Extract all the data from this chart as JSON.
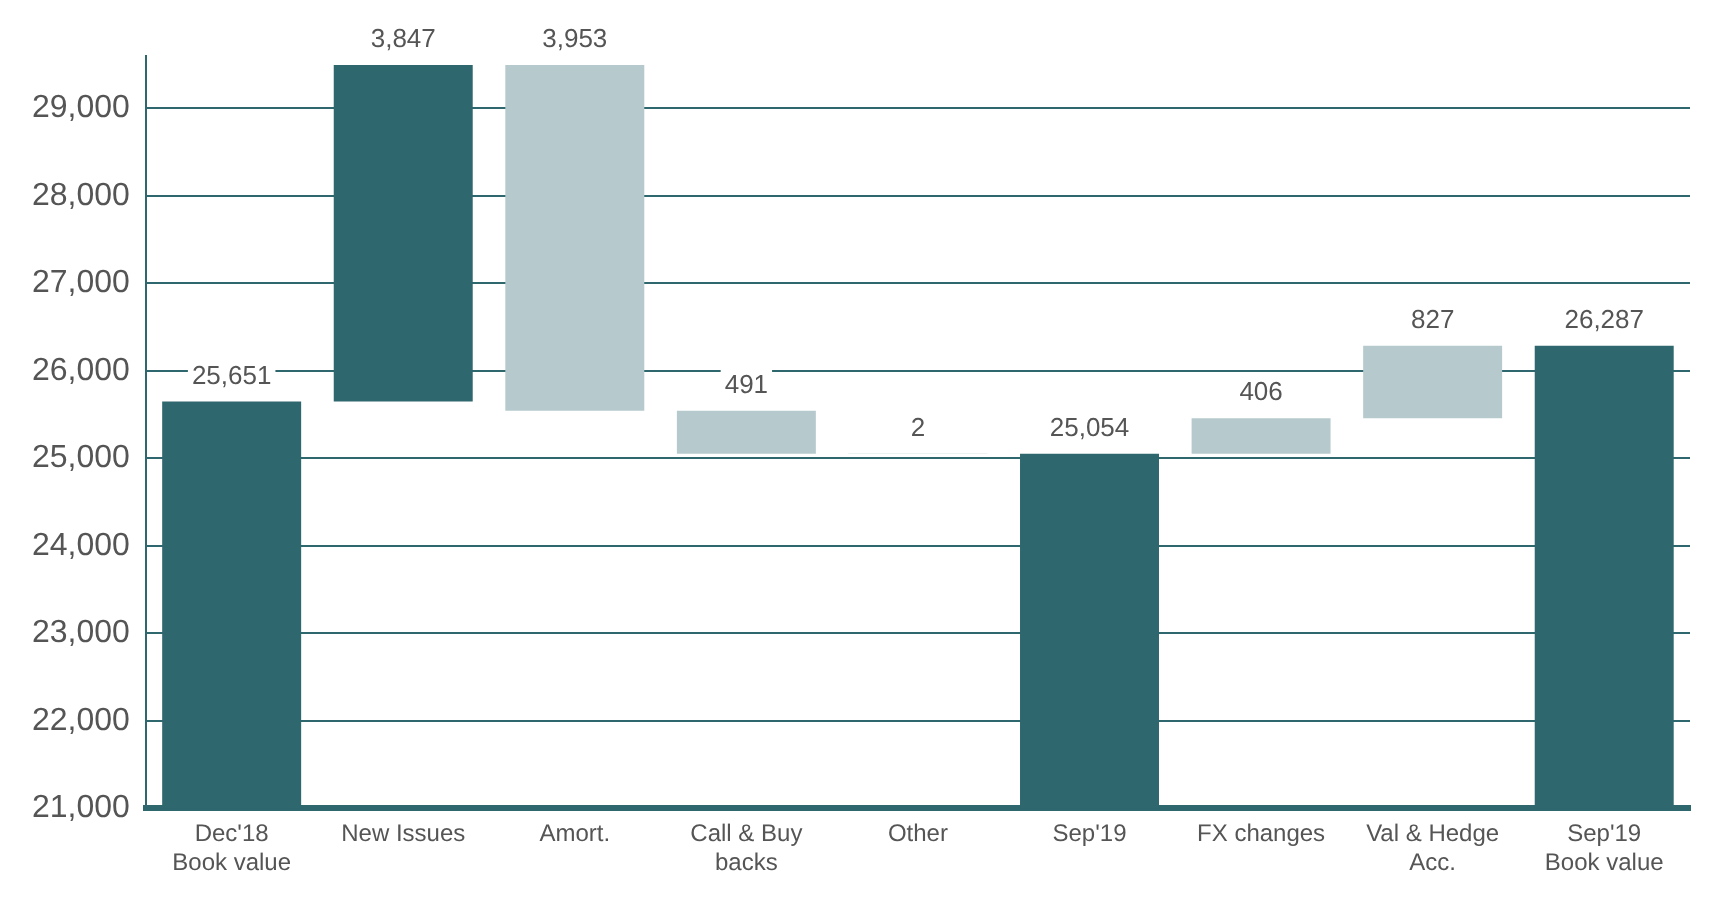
{
  "chart_data": {
    "type": "bar",
    "categories": [
      "Dec'18\nBook value",
      "New Issues",
      "Amort.",
      "Call & Buy\nbacks",
      "Other",
      "Sep'19",
      "FX changes",
      "Val & Hedge\nAcc.",
      "Sep'19\nBook value"
    ],
    "values": [
      25651,
      3847,
      -3953,
      -491,
      -2,
      25054,
      406,
      827,
      26287
    ],
    "base": [
      null,
      25651,
      29498,
      25545,
      25054,
      null,
      25054,
      25460,
      null
    ],
    "colors": [
      "#2e676e",
      "#2e676e",
      "#b6cace",
      "#b6cace",
      "#b6cace",
      "#2e676e",
      "#b6cace",
      "#b6cace",
      "#2e676e"
    ],
    "value_labels": [
      "25,651",
      "3,847",
      "3,953",
      "491",
      "2",
      "25,054",
      "406",
      "827",
      "26,287"
    ],
    "ylim": [
      21000,
      29600
    ],
    "yticks": [
      {
        "value": 21000,
        "label": "21,000"
      },
      {
        "value": 22000,
        "label": "22,000"
      },
      {
        "value": 23000,
        "label": "23,000"
      },
      {
        "value": 24000,
        "label": "24,000"
      },
      {
        "value": 25000,
        "label": "25,000"
      },
      {
        "value": 26000,
        "label": "26,000"
      },
      {
        "value": 27000,
        "label": "27,000"
      },
      {
        "value": 28000,
        "label": "28,000"
      },
      {
        "value": 29000,
        "label": "29,000"
      }
    ],
    "grid": "y",
    "legend": false
  }
}
